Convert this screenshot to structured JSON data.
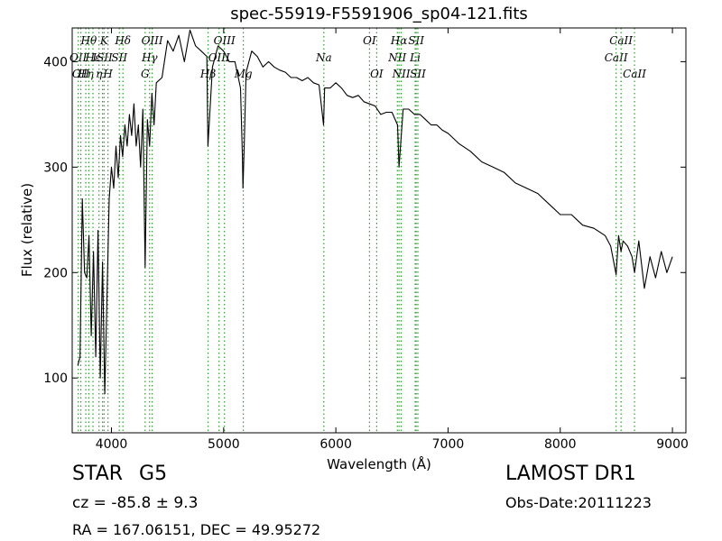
{
  "chart_data": {
    "type": "line",
    "title": "spec-55919-F5591906_sp04-121.fits",
    "xlabel": "Wavelength (Å)",
    "ylabel": "Flux (relative)",
    "xlim": [
      3650,
      9120
    ],
    "ylim": [
      48,
      432
    ],
    "x_ticks": [
      4000,
      5000,
      6000,
      7000,
      8000,
      9000
    ],
    "y_ticks": [
      100,
      200,
      300,
      400
    ],
    "grid": false,
    "line_color": "#000000",
    "marker_color": "#2ca02c",
    "series": [
      {
        "x": [
          3700,
          3720,
          3740,
          3760,
          3780,
          3800,
          3820,
          3840,
          3860,
          3880,
          3900,
          3920,
          3940,
          3960,
          3980,
          4000,
          4020,
          4040,
          4060,
          4080,
          4100,
          4120,
          4140,
          4160,
          4180,
          4200,
          4220,
          4240,
          4260,
          4280,
          4300,
          4320,
          4340,
          4360,
          4380,
          4400,
          4450,
          4500,
          4550,
          4600,
          4650,
          4700,
          4750,
          4800,
          4850,
          4860,
          4900,
          4950,
          5000,
          5050,
          5100,
          5150,
          5167,
          5172,
          5183,
          5200,
          5250,
          5300,
          5350,
          5400,
          5450,
          5500,
          5550,
          5600,
          5650,
          5700,
          5750,
          5800,
          5850,
          5890,
          5900,
          5950,
          6000,
          6050,
          6100,
          6150,
          6200,
          6250,
          6300,
          6350,
          6400,
          6450,
          6500,
          6550,
          6563,
          6600,
          6650,
          6700,
          6750,
          6800,
          6850,
          6900,
          6950,
          7000,
          7100,
          7200,
          7300,
          7400,
          7500,
          7600,
          7700,
          7800,
          7900,
          8000,
          8100,
          8200,
          8300,
          8400,
          8450,
          8498,
          8520,
          8542,
          8560,
          8600,
          8640,
          8662,
          8700,
          8750,
          8800,
          8850,
          8900,
          8950,
          9000
        ],
        "y": [
          112,
          120,
          270,
          200,
          195,
          235,
          140,
          220,
          120,
          240,
          100,
          210,
          85,
          175,
          270,
          300,
          280,
          320,
          290,
          330,
          310,
          340,
          320,
          350,
          330,
          360,
          320,
          340,
          300,
          355,
          205,
          345,
          320,
          370,
          340,
          380,
          385,
          420,
          410,
          425,
          400,
          430,
          415,
          410,
          405,
          320,
          395,
          415,
          410,
          400,
          400,
          375,
          310,
          280,
          320,
          390,
          410,
          405,
          395,
          400,
          395,
          392,
          390,
          385,
          385,
          382,
          385,
          380,
          378,
          340,
          375,
          375,
          380,
          375,
          368,
          366,
          368,
          362,
          360,
          358,
          350,
          352,
          352,
          340,
          300,
          355,
          355,
          350,
          350,
          345,
          340,
          340,
          335,
          332,
          322,
          315,
          305,
          300,
          295,
          285,
          280,
          275,
          265,
          255,
          255,
          245,
          242,
          235,
          225,
          198,
          235,
          220,
          230,
          225,
          215,
          200,
          230,
          185,
          215,
          195,
          220,
          200,
          215
        ]
      }
    ],
    "line_markers": [
      {
        "x": 3704,
        "row": 1,
        "label": "OII"
      },
      {
        "x": 3727,
        "row": 2,
        "label": "OII"
      },
      {
        "x": 3771,
        "row": 2,
        "label": "Hη"
      },
      {
        "x": 3798,
        "row": 0,
        "label": "Hθ"
      },
      {
        "x": 3835,
        "row": 1,
        "label": "Hε"
      },
      {
        "x": 3889,
        "row": 2,
        "label": "η"
      },
      {
        "x": 3934,
        "row": 0,
        "label": "K"
      },
      {
        "x": 3920,
        "row": 1,
        "label": "ISII"
      },
      {
        "x": 3969,
        "row": 2,
        "label": "H"
      },
      {
        "x": 4102,
        "row": 0,
        "label": "Hδ"
      },
      {
        "x": 4070,
        "row": 1,
        "label": "SII"
      },
      {
        "x": 4300,
        "row": 2,
        "label": "G"
      },
      {
        "x": 4340,
        "row": 1,
        "label": "Hγ"
      },
      {
        "x": 4363,
        "row": 0,
        "label": "OIII"
      },
      {
        "x": 4861,
        "row": 2,
        "label": "Hβ"
      },
      {
        "x": 4959,
        "row": 1,
        "label": "OIII"
      },
      {
        "x": 5007,
        "row": 0,
        "label": "OIII"
      },
      {
        "x": 5175,
        "row": 2,
        "label": "Mg"
      },
      {
        "x": 5893,
        "row": 1,
        "label": "Na"
      },
      {
        "x": 6300,
        "row": 0,
        "label": "OI"
      },
      {
        "x": 6364,
        "row": 2,
        "label": "OI"
      },
      {
        "x": 6548,
        "row": 1,
        "label": "NII"
      },
      {
        "x": 6563,
        "row": 0,
        "label": "Hα"
      },
      {
        "x": 6583,
        "row": 2,
        "label": "NII"
      },
      {
        "x": 6707,
        "row": 1,
        "label": "Li"
      },
      {
        "x": 6716,
        "row": 0,
        "label": "SII"
      },
      {
        "x": 6731,
        "row": 2,
        "label": "SII"
      },
      {
        "x": 8498,
        "row": 1,
        "label": "CaII"
      },
      {
        "x": 8542,
        "row": 0,
        "label": "CaII"
      },
      {
        "x": 8662,
        "row": 2,
        "label": "CaII"
      }
    ]
  },
  "info": {
    "class": "STAR",
    "subclass": "G5",
    "cz": "cz = -85.8 ± 9.3",
    "radec": "RA = 167.06151, DEC = 49.95272",
    "survey": "LAMOST DR1",
    "obsdate": "Obs-Date:20111223"
  }
}
